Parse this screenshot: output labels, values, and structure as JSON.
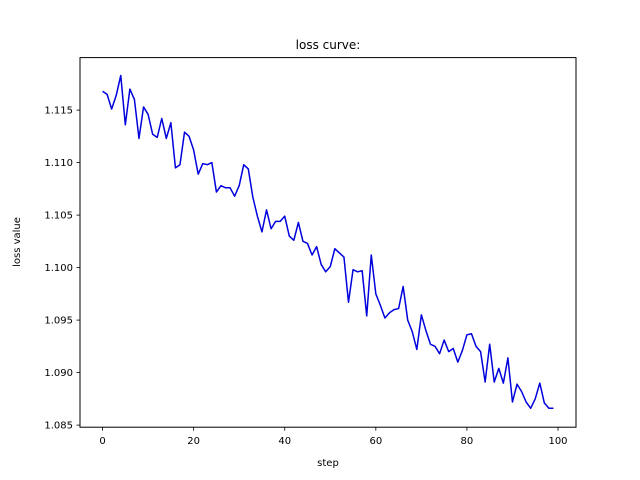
{
  "chart_data": {
    "type": "line",
    "title": "loss curve:",
    "xlabel": "step",
    "ylabel": "loss value",
    "xlim": [
      -4.95,
      103.95
    ],
    "ylim": [
      1.0848,
      1.12
    ],
    "xticks": [
      0,
      20,
      40,
      60,
      80,
      100
    ],
    "yticks": [
      1.085,
      1.09,
      1.095,
      1.1,
      1.105,
      1.11,
      1.115
    ],
    "xtick_labels": [
      "0",
      "20",
      "40",
      "60",
      "80",
      "100"
    ],
    "ytick_labels": [
      "1.085",
      "1.090",
      "1.095",
      "1.100",
      "1.105",
      "1.110",
      "1.115"
    ],
    "grid": false,
    "series": [
      {
        "color": "#0000dd",
        "x": [
          0,
          1,
          2,
          3,
          4,
          5,
          6,
          7,
          8,
          9,
          10,
          11,
          12,
          13,
          14,
          15,
          16,
          17,
          18,
          19,
          20,
          21,
          22,
          23,
          24,
          25,
          26,
          27,
          28,
          29,
          30,
          31,
          32,
          33,
          34,
          35,
          36,
          37,
          38,
          39,
          40,
          41,
          42,
          43,
          44,
          45,
          46,
          47,
          48,
          49,
          50,
          51,
          52,
          53,
          54,
          55,
          56,
          57,
          58,
          59,
          60,
          61,
          62,
          63,
          64,
          65,
          66,
          67,
          68,
          69,
          70,
          71,
          72,
          73,
          74,
          75,
          76,
          77,
          78,
          79,
          80,
          81,
          82,
          83,
          84,
          85,
          86,
          87,
          88,
          89,
          90,
          91,
          92,
          93,
          94,
          95,
          96,
          97,
          98,
          99
        ],
        "y": [
          1.1168,
          1.1165,
          1.1151,
          1.1164,
          1.1183,
          1.1136,
          1.117,
          1.116,
          1.1123,
          1.1153,
          1.1146,
          1.1127,
          1.1124,
          1.1142,
          1.1123,
          1.1138,
          1.1095,
          1.1098,
          1.1129,
          1.1125,
          1.1112,
          1.1089,
          1.1099,
          1.1098,
          1.11,
          1.1072,
          1.1078,
          1.1076,
          1.1076,
          1.1068,
          1.1078,
          1.1098,
          1.1094,
          1.1067,
          1.1049,
          1.1034,
          1.1055,
          1.1037,
          1.1044,
          1.1044,
          1.1049,
          1.103,
          1.1026,
          1.1043,
          1.1025,
          1.1023,
          1.1012,
          1.102,
          1.1003,
          1.0996,
          1.1001,
          1.1018,
          1.1014,
          1.101,
          1.0967,
          1.0998,
          1.0996,
          1.0997,
          1.0954,
          1.1012,
          1.0975,
          1.0964,
          1.0952,
          1.0957,
          1.096,
          1.0961,
          1.0982,
          1.095,
          1.0939,
          1.0922,
          1.0955,
          1.094,
          1.0927,
          1.0925,
          1.0918,
          1.0931,
          1.092,
          1.0923,
          1.091,
          1.0921,
          1.0936,
          1.0937,
          1.0925,
          1.092,
          1.0891,
          1.0927,
          1.0891,
          1.0904,
          1.089,
          1.0914,
          1.0872,
          1.0889,
          1.0882,
          1.0872,
          1.0866,
          1.0875,
          1.089,
          1.0871,
          1.0866,
          1.0866
        ]
      }
    ]
  }
}
